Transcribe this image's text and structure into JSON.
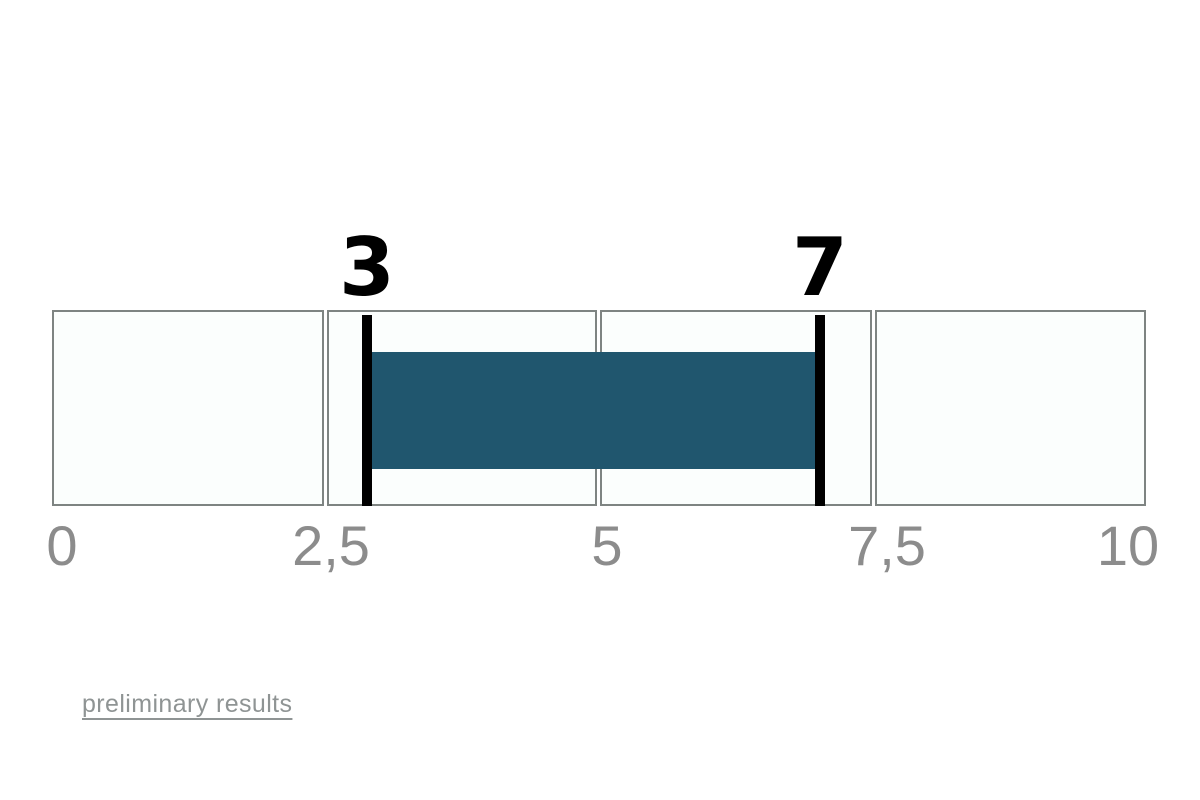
{
  "chart_data": {
    "type": "bar",
    "subtype": "horizontal-range-indicator",
    "title": "",
    "xlabel": "",
    "ylabel": "",
    "axis": {
      "min": 0,
      "max": 10,
      "ticks": [
        "0",
        "2,5",
        "5",
        "7,5",
        "10"
      ],
      "tick_values": [
        0,
        2.5,
        5,
        7.5,
        10
      ],
      "decimal_separator": ","
    },
    "segments": [
      {
        "from": 0,
        "to": 2.5
      },
      {
        "from": 2.5,
        "to": 5
      },
      {
        "from": 5,
        "to": 7.5
      },
      {
        "from": 7.5,
        "to": 10
      }
    ],
    "range": {
      "from": 3,
      "to": 7,
      "from_label": "3",
      "to_label": "7"
    },
    "grid": false,
    "legend": "none",
    "colors": {
      "range_bar_fill": "#20566e",
      "marker": "#000000",
      "marker_label_text": "#000000",
      "segment_fill": "#fbfefd",
      "segment_border": "#7e8482",
      "tick_text": "#8c8c8c",
      "background": "#ffffff"
    }
  },
  "footer": {
    "link_label": "preliminary results",
    "link_color": "#8f9494"
  }
}
